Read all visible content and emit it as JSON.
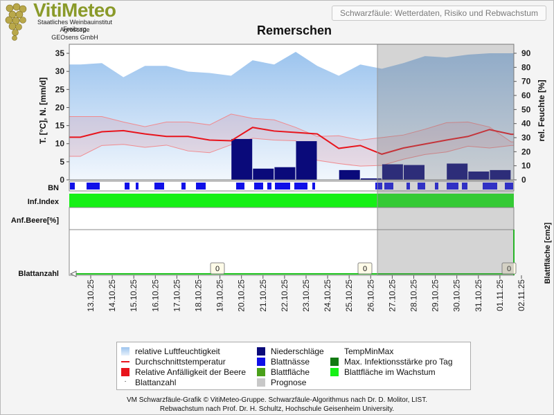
{
  "header": {
    "logo_title": "VitiMeteo",
    "logo_lines": [
      "Staatliches Weinbauinstitut Freiburg",
      "Agroscope",
      "GEOsens GmbH"
    ],
    "subtitle": "Schwarzfäule: Wetterdaten, Risiko und Rebwachstum",
    "title": "Remerschen"
  },
  "colors": {
    "humidity": "#a9cdf0",
    "precip": "#0a0a7a",
    "temp": "#e8141c",
    "leafwet": "#1010e8",
    "infection": "#16f016",
    "prognose": "#c8c8c8"
  },
  "chart_data": {
    "type": "area",
    "x_dates": [
      "13.10.25",
      "14.10.25",
      "15.10.25",
      "16.10.25",
      "17.10.25",
      "18.10.25",
      "19.10.25",
      "20.10.25",
      "21.10.25",
      "22.10.25",
      "23.10.25",
      "24.10.25",
      "25.10.25",
      "26.10.25",
      "27.10.25",
      "28.10.25",
      "29.10.25",
      "30.10.25",
      "31.10.25",
      "01.11.25",
      "02.11.25"
    ],
    "ylabel_left": "T. [°C], N. [mm/d]",
    "ylabel_right": "rel. Feuchte [%]",
    "ylabel_right_lower": "Blattfläche [cm2]",
    "y_left_ticks": [
      0,
      5,
      10,
      15,
      20,
      25,
      30,
      35
    ],
    "y_right_ticks": [
      0,
      10,
      20,
      30,
      40,
      50,
      60,
      70,
      80,
      90
    ],
    "ylim_left": [
      0,
      37.5
    ],
    "ylim_right": [
      0,
      96.4
    ],
    "humidity": [
      82,
      83,
      73,
      81,
      81,
      77,
      76,
      74,
      85,
      82,
      91,
      81,
      74,
      82,
      79,
      83,
      88,
      87,
      89,
      90,
      90
    ],
    "temp_mean": [
      11.8,
      13.3,
      13.6,
      12.7,
      12.0,
      12.0,
      11.0,
      10.8,
      14.5,
      13.5,
      13.1,
      12.7,
      8.7,
      9.5,
      7.1,
      8.8,
      9.9,
      11.0,
      12.0,
      13.9,
      12.6
    ],
    "temp_upper": [
      17.5,
      17.5,
      16.0,
      14.7,
      16.0,
      16.0,
      15.2,
      18.2,
      17.0,
      16.6,
      14.5,
      12.0,
      12.2,
      11.0,
      11.7,
      12.4,
      14.0,
      15.8,
      16.0,
      14.6,
      10.5
    ],
    "temp_lower": [
      6.5,
      9.5,
      9.8,
      9.0,
      9.6,
      8.0,
      7.5,
      9.7,
      11.5,
      11.0,
      10.8,
      5.4,
      4.5,
      3.8,
      4.0,
      5.7,
      7.0,
      7.7,
      9.3,
      8.8,
      9.5
    ],
    "precip": [
      0,
      0,
      0,
      0,
      0,
      0,
      0,
      11.3,
      3.1,
      3.5,
      10.7,
      0,
      2.7,
      0.4,
      4.3,
      4.1,
      0,
      4.5,
      2.3,
      2.7,
      0
    ],
    "forecast_from": "26.10.25",
    "bn_row_label": "BN",
    "inf_row_label": "Inf.Index",
    "anf_row_label": "Anf.Beere[%]",
    "blatt_row_label": "Blattanzahl",
    "blatt_values": [
      "0",
      "0",
      "0"
    ]
  },
  "legend": {
    "items": [
      "relative Luftfeuchtigkeit",
      "Niederschläge",
      "TempMinMax",
      "Durchschnittstemperatur",
      "Blattnässe",
      "Max. Infektionsstärke pro Tag",
      "Relative Anfälligkeit der Beere",
      "Blattfläche",
      "Blattfläche im Wachstum",
      "Blattanzahl",
      "Prognose"
    ]
  },
  "footer": {
    "line1": "VM Schwarzfäule-Grafik © VitiMeteo-Gruppe. Schwarzfäule-Algorithmus nach Dr. D. Molitor, LIST.",
    "line2": "Rebwachstum nach Prof. Dr. H. Schultz, Hochschule Geisenheim University."
  }
}
